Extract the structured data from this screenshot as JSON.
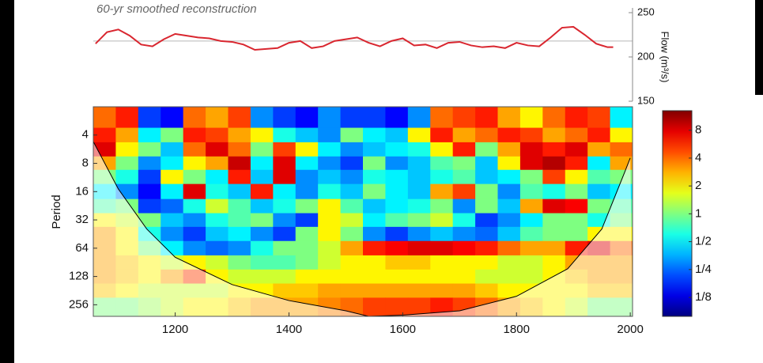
{
  "chart_data": [
    {
      "type": "line",
      "title": "60-yr smoothed reconstruction",
      "y_label": "Flow (m³/s)",
      "x": [
        1060,
        1080,
        1100,
        1120,
        1140,
        1160,
        1180,
        1200,
        1220,
        1240,
        1260,
        1280,
        1300,
        1320,
        1340,
        1360,
        1380,
        1400,
        1420,
        1440,
        1460,
        1480,
        1500,
        1520,
        1540,
        1560,
        1580,
        1600,
        1620,
        1640,
        1660,
        1680,
        1700,
        1720,
        1740,
        1760,
        1780,
        1800,
        1820,
        1840,
        1860,
        1880,
        1900,
        1920,
        1940,
        1960,
        1970
      ],
      "series": [
        {
          "color": "#d9262f",
          "values": [
            215,
            228,
            231,
            224,
            214,
            212,
            220,
            226,
            224,
            222,
            221,
            218,
            217,
            214,
            208,
            209,
            210,
            216,
            218,
            210,
            212,
            218,
            220,
            222,
            216,
            212,
            218,
            221,
            213,
            214,
            210,
            216,
            217,
            213,
            211,
            212,
            210,
            216,
            213,
            212,
            222,
            233,
            234,
            225,
            215,
            211,
            211
          ]
        }
      ],
      "reference_line": 218,
      "reference_color": "#b8b8b8",
      "xlim": [
        1056,
        2004
      ],
      "ylim": [
        150,
        250
      ],
      "yticks": [
        150,
        200,
        250
      ]
    },
    {
      "type": "heatmap",
      "y_label": "Period",
      "log_y": true,
      "colormap": "jet",
      "xlim": [
        1056,
        2004
      ],
      "xticks": [
        1200,
        1400,
        1600,
        1800,
        2000
      ],
      "ylim": [
        2,
        340
      ],
      "yticks": [
        4,
        8,
        16,
        32,
        64,
        128,
        256
      ],
      "x": [
        1076,
        1115,
        1155,
        1194,
        1234,
        1273,
        1313,
        1352,
        1392,
        1431,
        1471,
        1510,
        1550,
        1589,
        1629,
        1668,
        1708,
        1747,
        1787,
        1826,
        1866,
        1905,
        1945,
        1984
      ],
      "periods": [
        2.8,
        4,
        5.7,
        8,
        11,
        16,
        23,
        32,
        45,
        64,
        91,
        128,
        181,
        256
      ],
      "power": [
        [
          4,
          6,
          0.2,
          0.15,
          4,
          3,
          5,
          0.3,
          0.2,
          0.15,
          0.3,
          0.2,
          0.2,
          0.15,
          0.3,
          4,
          5,
          6,
          3,
          2,
          4,
          6,
          5,
          0.5
        ],
        [
          6,
          3,
          0.5,
          1,
          6,
          5,
          3,
          2,
          0.6,
          0.4,
          0.3,
          1,
          0.5,
          0.4,
          2,
          6,
          3,
          4,
          6,
          5,
          3,
          4,
          6,
          2
        ],
        [
          8,
          2,
          1,
          0.4,
          4,
          8,
          4,
          1,
          5,
          2,
          0.5,
          0.3,
          0.4,
          0.5,
          0.6,
          2,
          6,
          1,
          3,
          8,
          6,
          8,
          3,
          4
        ],
        [
          3,
          1,
          0.3,
          0.5,
          2,
          3,
          9,
          0.5,
          8,
          0.5,
          0.3,
          0.2,
          1,
          0.3,
          0.4,
          0.8,
          1,
          0.4,
          2,
          8,
          10,
          6,
          0.5,
          3
        ],
        [
          1,
          0.6,
          0.2,
          2,
          1,
          0.5,
          6,
          0.4,
          8,
          0.3,
          0.4,
          0.3,
          0.6,
          0.5,
          0.4,
          0.6,
          0.8,
          0.4,
          0.5,
          1,
          5,
          2,
          0.8,
          1
        ],
        [
          0.5,
          0.3,
          0.15,
          0.5,
          8,
          0.6,
          0.4,
          6,
          0.5,
          0.3,
          0.6,
          0.4,
          1,
          0.5,
          0.4,
          3,
          5,
          1,
          0.3,
          0.8,
          0.6,
          1,
          0.4,
          0.5
        ],
        [
          0.8,
          1,
          0.2,
          0.25,
          0.6,
          1.5,
          0.8,
          0.4,
          0.6,
          1,
          2,
          0.8,
          0.4,
          0.5,
          0.6,
          1,
          0.3,
          1,
          0.4,
          3,
          8,
          7,
          1,
          0.8
        ],
        [
          2,
          1.5,
          1,
          0.4,
          0.3,
          0.6,
          0.8,
          1,
          0.3,
          0.2,
          2,
          1.5,
          0.5,
          0.8,
          1,
          1.5,
          0.6,
          0.2,
          0.3,
          0.5,
          1,
          1,
          0.6,
          1
        ],
        [
          3,
          2,
          0.6,
          0.3,
          0.2,
          0.4,
          0.5,
          0.3,
          0.2,
          1,
          2,
          1,
          0.3,
          0.2,
          0.3,
          0.4,
          0.3,
          0.25,
          0.4,
          0.8,
          1,
          1,
          2,
          2
        ],
        [
          3,
          2,
          1,
          0.5,
          0.3,
          0.25,
          0.3,
          0.6,
          1,
          1,
          1.5,
          3,
          6,
          7,
          8,
          8,
          7,
          6,
          4,
          3,
          3,
          6,
          8,
          4
        ],
        [
          3,
          2.5,
          2,
          1.5,
          2,
          1.5,
          1,
          0.8,
          0.8,
          1,
          1.5,
          2,
          2,
          2.5,
          2.5,
          2,
          2,
          2,
          1.5,
          1.5,
          2,
          3,
          3,
          3
        ],
        [
          3,
          2.5,
          2,
          3,
          5,
          2,
          1.5,
          1.5,
          1.5,
          2,
          2,
          2,
          2,
          2,
          2,
          2,
          2,
          1.5,
          1.5,
          1.5,
          2,
          2.5,
          3,
          3
        ],
        [
          2.5,
          2,
          1.5,
          1.5,
          1.5,
          1.5,
          2,
          2,
          2.5,
          2.5,
          3,
          3,
          3,
          3,
          3,
          3,
          3,
          2.5,
          2,
          2,
          2,
          2,
          2.5,
          2.5
        ],
        [
          1,
          1,
          1.2,
          1.5,
          2,
          2,
          2.5,
          3,
          3,
          3,
          3.5,
          4,
          5,
          5,
          5,
          6,
          5,
          4,
          3,
          2.5,
          2,
          1.5,
          1,
          1
        ]
      ],
      "coi": {
        "x": [
          1056,
          1100,
          1150,
          1200,
          1300,
          1400,
          1500,
          1540,
          1600,
          1700,
          1800,
          1890,
          1950,
          1990,
          2000
        ],
        "periods": [
          4.7,
          15,
          40,
          80,
          156,
          231,
          297,
          340,
          330,
          297,
          208,
          106,
          40,
          10,
          7
        ]
      },
      "clim": [
        0.078,
        13
      ],
      "colorbar_ticks": [
        8,
        4,
        2,
        1,
        {
          "value": 0.5,
          "label": "1/2"
        },
        {
          "value": 0.25,
          "label": "1/4"
        },
        {
          "value": 0.125,
          "label": "1/8"
        }
      ]
    }
  ]
}
